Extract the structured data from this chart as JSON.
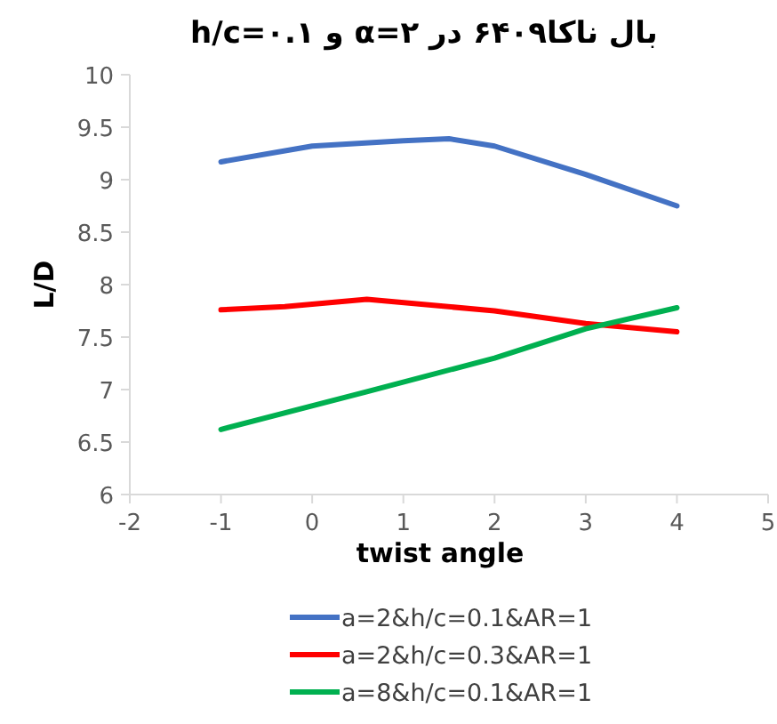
{
  "chart_data": {
    "type": "line",
    "title": "بال ناکا۶۴۰۹ در α=۲ و h/c=۰.۱",
    "xlabel": "twist angle",
    "ylabel": "L/D",
    "xlim": [
      -2,
      5
    ],
    "xticks": [
      -2,
      -1,
      0,
      1,
      2,
      3,
      4,
      5
    ],
    "ylim": [
      6,
      10
    ],
    "yticks": [
      6,
      6.5,
      7,
      7.5,
      8,
      8.5,
      9,
      9.5,
      10
    ],
    "grid": false,
    "legend": "bottom",
    "marker": "none",
    "line_style": "solid",
    "series": [
      {
        "name": "a=2&h/c=0.1&AR=1",
        "color": "#4472c4",
        "x": [
          -1,
          0,
          1,
          1.5,
          2,
          3,
          4
        ],
        "values": [
          9.17,
          9.32,
          9.37,
          9.39,
          9.32,
          9.05,
          8.75
        ]
      },
      {
        "name": "a=2&h/c=0.3&AR=1",
        "color": "#ff0000",
        "x": [
          -1,
          -0.3,
          0.6,
          2,
          3,
          4
        ],
        "values": [
          7.76,
          7.79,
          7.86,
          7.75,
          7.63,
          7.55
        ]
      },
      {
        "name": "a=8&h/c=0.1&AR=1",
        "color": "#00b050",
        "x": [
          -1,
          0.6,
          2,
          3,
          4
        ],
        "values": [
          6.62,
          6.98,
          7.3,
          7.58,
          7.78
        ]
      }
    ]
  }
}
